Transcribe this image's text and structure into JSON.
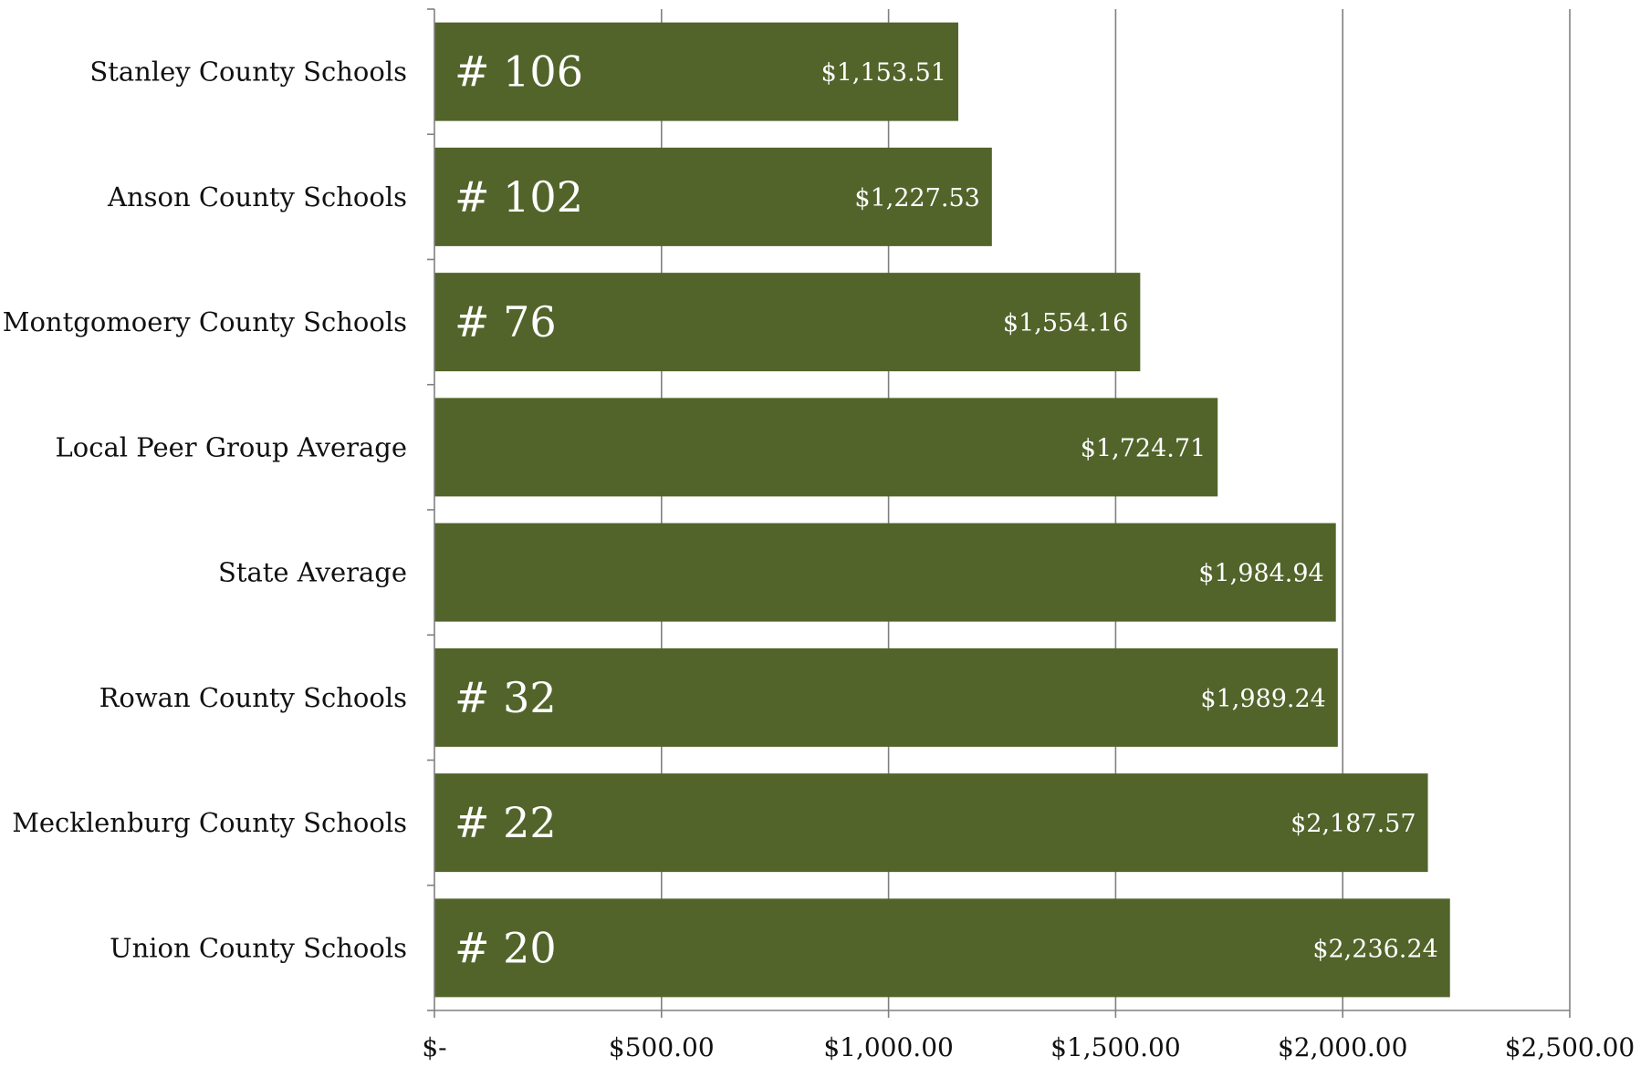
{
  "chart_data": {
    "type": "bar",
    "orientation": "horizontal",
    "title": "",
    "xlabel": "",
    "ylabel": "",
    "categories": [
      "Stanley County Schools",
      "Anson County Schools",
      "Montgomoery County Schools",
      "Local Peer Group Average",
      "State Average",
      "Rowan County Schools",
      "Mecklenburg County Schools",
      "Union County Schools"
    ],
    "values": [
      1153.51,
      1227.53,
      1554.16,
      1724.71,
      1984.94,
      1989.24,
      2187.57,
      2236.24
    ],
    "value_labels": [
      "$1,153.51",
      "$1,227.53",
      "$1,554.16",
      "$1,724.71",
      "$1,984.94",
      "$1,989.24",
      "$2,187.57",
      "$2,236.24"
    ],
    "rank_labels": [
      "# 106",
      "# 102",
      "# 76",
      "",
      "",
      "# 32",
      "# 22",
      "# 20"
    ],
    "xlim": [
      0,
      2500
    ],
    "x_ticks": [
      0,
      500,
      1000,
      1500,
      2000,
      2500
    ],
    "x_tick_labels": [
      "$-",
      "$500.00",
      "$1,000.00",
      "$1,500.00",
      "$2,000.00",
      "$2,500.00"
    ],
    "grid": "vertical",
    "legend": "none",
    "colors": {
      "bar": "#52642a",
      "grid": "#808080",
      "axis": "#808080",
      "text": "#111111",
      "bar_text": "#ffffff"
    }
  }
}
